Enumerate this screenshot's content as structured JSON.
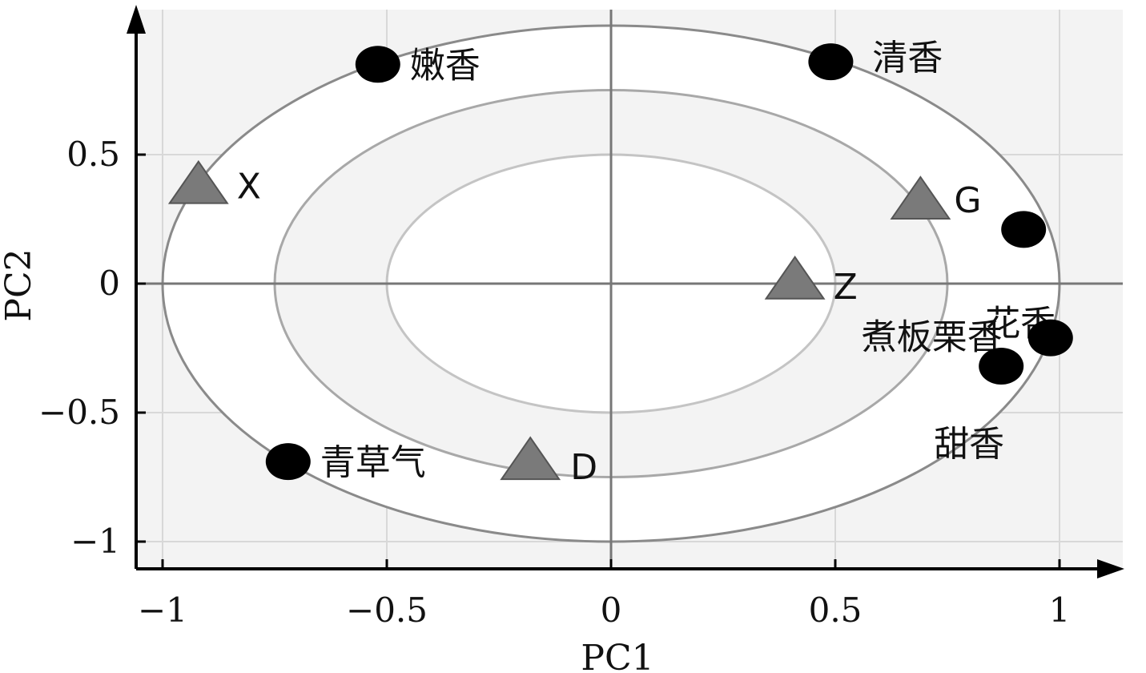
{
  "chart_data": {
    "type": "scatter",
    "title": "",
    "xlabel": "PC1",
    "ylabel": "PC2",
    "xlim": [
      -1.07,
      1.13
    ],
    "ylim": [
      -1.1,
      1.06
    ],
    "x_ticks": [
      -1,
      -0.5,
      0,
      0.5,
      1
    ],
    "x_tick_labels": [
      "−1",
      "−0.5",
      "0",
      "0.5",
      "1"
    ],
    "y_ticks": [
      0.5,
      0,
      -0.5,
      -1
    ],
    "y_tick_labels": [
      "0.5",
      "0",
      "−0.5",
      "−1"
    ],
    "grid": true,
    "ellipse_radii": [
      {
        "rx": 1.0,
        "ry": 1.0
      },
      {
        "rx": 0.75,
        "ry": 0.75
      },
      {
        "rx": 0.5,
        "ry": 0.5
      }
    ],
    "series": [
      {
        "marker": "circle",
        "color": "#000000",
        "points": [
          {
            "label": "嫩香",
            "x": -0.52,
            "y": 0.85
          },
          {
            "label": "清香",
            "x": 0.49,
            "y": 0.86
          },
          {
            "label": "花香",
            "x": 0.92,
            "y": 0.21
          },
          {
            "label": "煮板栗香",
            "x": 0.98,
            "y": -0.21
          },
          {
            "label": "甜香",
            "x": 0.87,
            "y": -0.32
          },
          {
            "label": "青草气",
            "x": -0.72,
            "y": -0.69
          }
        ]
      },
      {
        "marker": "triangle",
        "color": "#7a7a7a",
        "points": [
          {
            "label": "X",
            "x": -0.92,
            "y": 0.38
          },
          {
            "label": "G",
            "x": 0.69,
            "y": 0.32
          },
          {
            "label": "Z",
            "x": 0.41,
            "y": 0.01
          },
          {
            "label": "D",
            "x": -0.18,
            "y": -0.69
          }
        ]
      }
    ]
  }
}
